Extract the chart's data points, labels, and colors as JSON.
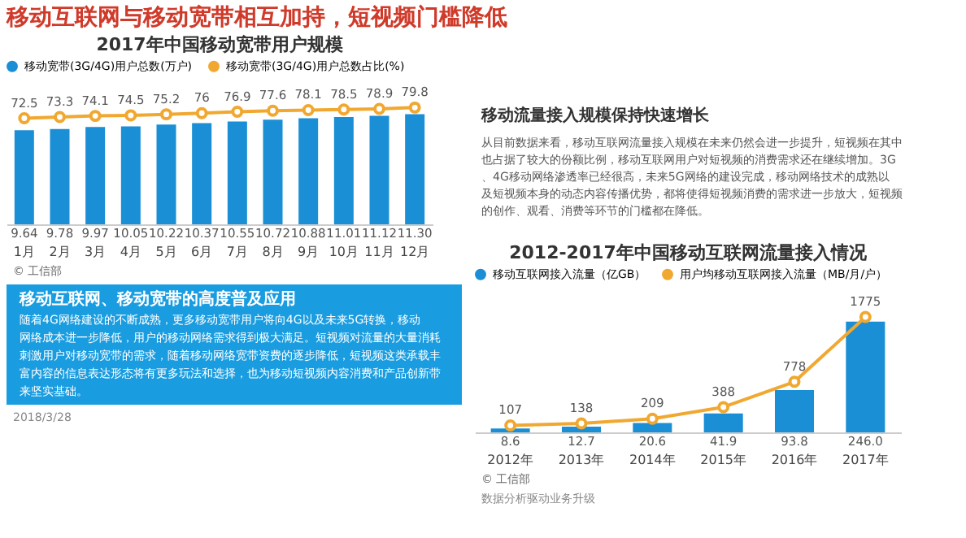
{
  "chart_data": [
    {
      "type": "bar",
      "title": "2017年中国移动宽带用户规模",
      "categories": [
        "1月",
        "2月",
        "3月",
        "4月",
        "5月",
        "6月",
        "7月",
        "8月",
        "9月",
        "10月",
        "11月",
        "12月"
      ],
      "legend": "top",
      "tick_labels": "x",
      "series": [
        {
          "name": "移动宽带(3G/4G)用户总数(万户)",
          "color": "#1a8fd6",
          "values": [
            9.64,
            9.78,
            9.97,
            10.05,
            10.22,
            10.37,
            10.55,
            10.72,
            10.88,
            11.01,
            11.12,
            11.3
          ],
          "value_labels": [
            "9.64",
            "9.78",
            "9.97",
            "10.05",
            "10.22",
            "10.37",
            "10.55",
            "10.72",
            "10.88",
            "11.01",
            "11.12",
            "11.30"
          ]
        },
        {
          "name": "移动宽带(3G/4G)用户总数占比(%)",
          "color": "#f0a830",
          "type": "line",
          "axis": "y2",
          "marker": "circle",
          "values": [
            72.5,
            73.3,
            74.1,
            74.5,
            75.2,
            76,
            76.9,
            77.6,
            78.1,
            78.5,
            78.9,
            79.8
          ],
          "value_labels": [
            "72.5",
            "73.3",
            "74.1",
            "74.5",
            "75.2",
            "76",
            "76.9",
            "77.6",
            "78.1",
            "78.5",
            "78.9",
            "79.8"
          ]
        }
      ],
      "annotations": [
        "移动互联网与移动宽带相互加持，短视频门槛降低",
        "© 工信部",
        "移动互联网、移动宽带的高度普及应用",
        "随着4G网络建设的不断成熟，更多移动宽带用户将向4G以及未来5G转换，移动网络成本进一步降低，用户的移动网络需求得到极大满足。短视频对流量的大量消耗刺激用户对移动宽带的需求，随着移动网络宽带资费的逐步降低，短视频这类承载丰富内容的信息表达形态将有更多玩法和选择，也为移动短视频内容消费和产品创新带来坚实基础。",
        "2018/3/28"
      ]
    },
    {
      "type": "bar",
      "title": "2012-2017年中国移动互联网流量接入情况",
      "categories": [
        "2012年",
        "2013年",
        "2014年",
        "2015年",
        "2016年",
        "2017年"
      ],
      "legend": "top",
      "tick_labels": "x",
      "series": [
        {
          "name": "移动互联网接入流量（亿GB）",
          "color": "#1a8fd6",
          "values": [
            8.6,
            12.7,
            20.6,
            41.9,
            93.8,
            246.0
          ],
          "value_labels": [
            "8.6",
            "12.7",
            "20.6",
            "41.9",
            "93.8",
            "246.0"
          ]
        },
        {
          "name": "用户均移动互联网接入流量（MB/月/户）",
          "color": "#f0a830",
          "type": "line",
          "axis": "y2",
          "marker": "circle",
          "values": [
            107,
            138,
            209,
            388,
            778,
            1775
          ],
          "value_labels": [
            "107",
            "138",
            "209",
            "388",
            "778",
            "1775"
          ]
        }
      ],
      "annotations": [
        "移动流量接入规模保持快速增长",
        "从目前数据来看，移动互联网流量接入规模在未来仍然会进一步提升，短视频在其中也占据了较大的份额比例，移动互联网用户对短视频的消费需求还在继续增加。3G、4G移动网络渗透率已经很高，未来5G网络的建设完成，移动网络技术的成熟以及短视频本身的动态内容传播优势，都将使得短视频消费的需求进一步放大，短视频的创作、观看、消费等环节的门槛都在降低。",
        "© 工信部",
        "数据分析驱动业务升级"
      ]
    }
  ]
}
